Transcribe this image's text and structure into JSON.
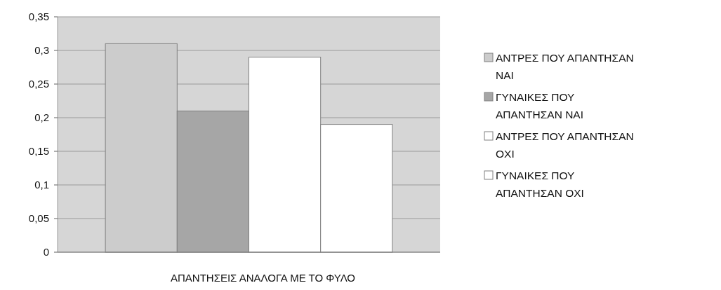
{
  "chart_data": {
    "type": "bar",
    "xlabel": "ΑΠΑΝΤΗΣΕΙΣ ΑΝΑΛΟΓΑ ΜΕ ΤΟ ΦΥΛΟ",
    "categories": [
      null
    ],
    "series": [
      {
        "name": "ΑΝΤΡΕΣ ΠΟΥ ΑΠΑΝΤΗΣΑΝ ΝΑΙ",
        "color": "#cccccc",
        "values": [
          0.31
        ]
      },
      {
        "name": "ΓΥΝΑΙΚΕΣ ΠΟΥ ΑΠΑΝΤΗΣΑΝ ΝΑΙ",
        "color": "#a6a6a6",
        "values": [
          0.21
        ]
      },
      {
        "name": "ΑΝΤΡΕΣ ΠΟΥ ΑΠΑΝΤΗΣΑΝ ΟΧΙ",
        "color": "#ffffff",
        "values": [
          0.29
        ]
      },
      {
        "name": "ΓΥΝΑΙΚΕΣ ΠΟΥ ΑΠΑΝΤΗΣΑΝ ΟΧΙ",
        "color": "#ffffff",
        "values": [
          0.19
        ]
      }
    ],
    "ylim": [
      0,
      0.35
    ],
    "yticks": [
      {
        "value": 0,
        "label": "0"
      },
      {
        "value": 0.05,
        "label": "0,05"
      },
      {
        "value": 0.1,
        "label": "0,1"
      },
      {
        "value": 0.15,
        "label": "0,15"
      },
      {
        "value": 0.2,
        "label": "0,2"
      },
      {
        "value": 0.25,
        "label": "0,25"
      },
      {
        "value": 0.3,
        "label": "0,3"
      },
      {
        "value": 0.35,
        "label": "0,35"
      }
    ],
    "grid": "y",
    "legend": "right"
  }
}
